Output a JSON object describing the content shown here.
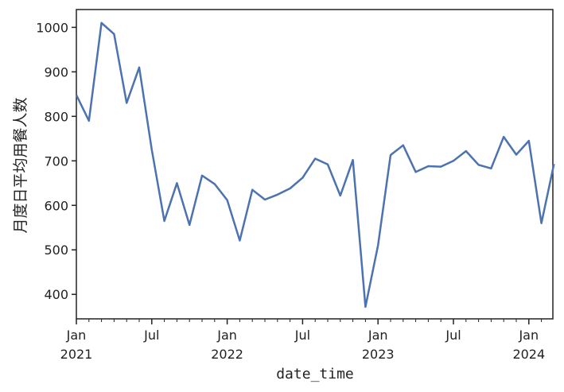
{
  "chart_data": {
    "type": "line",
    "title": "",
    "xlabel": "date_time",
    "ylabel": "月度日平均用餐人数",
    "x": [
      "2021-01",
      "2021-02",
      "2021-03",
      "2021-04",
      "2021-05",
      "2021-06",
      "2021-07",
      "2021-08",
      "2021-09",
      "2021-10",
      "2021-11",
      "2021-12",
      "2022-01",
      "2022-02",
      "2022-03",
      "2022-04",
      "2022-05",
      "2022-06",
      "2022-07",
      "2022-08",
      "2022-09",
      "2022-10",
      "2022-11",
      "2022-12",
      "2023-01",
      "2023-02",
      "2023-03",
      "2023-04",
      "2023-05",
      "2023-06",
      "2023-07",
      "2023-08",
      "2023-09",
      "2023-10",
      "2023-11",
      "2023-12",
      "2024-01",
      "2024-02",
      "2024-03"
    ],
    "values": [
      848,
      790,
      1010,
      985,
      830,
      910,
      725,
      565,
      650,
      556,
      667,
      648,
      612,
      521,
      635,
      613,
      624,
      638,
      662,
      705,
      692,
      622,
      702,
      372,
      510,
      713,
      735,
      675,
      688,
      687,
      700,
      722,
      691,
      683,
      754,
      714,
      745,
      560,
      693
    ],
    "xticks": [
      {
        "label": "Jan",
        "sub": "2021"
      },
      {
        "label": "Jul",
        "sub": ""
      },
      {
        "label": "Jan",
        "sub": "2022"
      },
      {
        "label": "Jul",
        "sub": ""
      },
      {
        "label": "Jan",
        "sub": "2023"
      },
      {
        "label": "Jul",
        "sub": ""
      },
      {
        "label": "Jan",
        "sub": "2024"
      }
    ],
    "yticks": [
      400,
      500,
      600,
      700,
      800,
      900,
      1000
    ],
    "ylim": [
      345,
      1040
    ],
    "grid": false,
    "legend": "none",
    "line_color": "#4c72b0"
  }
}
